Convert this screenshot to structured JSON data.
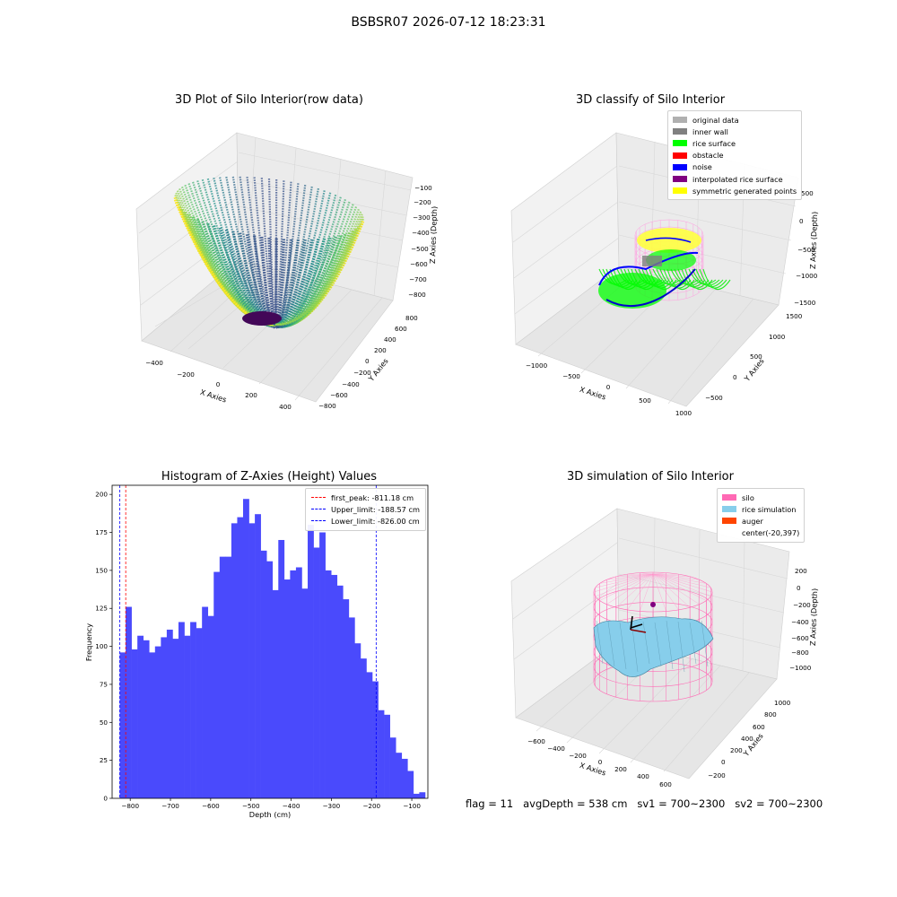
{
  "suptitle": "BSBSR07 2026-07-12 18:23:31",
  "status_line": "flag = 11   avgDepth = 538 cm   sv1 = 700~2300   sv2 = 700~2300",
  "chart_data": [
    {
      "type": "scatter3d",
      "title": "3D Plot of Silo Interior(row data)",
      "xlabel": "X Axies",
      "ylabel": "Y Axies",
      "zlabel": "Z Axies (Depth)",
      "xticks": [
        "−400",
        "−200",
        "0",
        "200",
        "400"
      ],
      "yticks": [
        "−800",
        "−600",
        "−400",
        "−200",
        "0",
        "200",
        "400",
        "600",
        "800"
      ],
      "zticks": [
        "−100",
        "−200",
        "−300",
        "−400",
        "−500",
        "−600",
        "−700",
        "−800"
      ],
      "colormap": "viridis",
      "grid": true
    },
    {
      "type": "scatter3d",
      "title": "3D classify of Silo Interior",
      "xlabel": "X Axies",
      "ylabel": "Y Axies",
      "zlabel": "Z Axies (Depth)",
      "xticks": [
        "−1000",
        "−500",
        "0",
        "500",
        "1000"
      ],
      "yticks": [
        "−500",
        "0",
        "500",
        "1000",
        "1500"
      ],
      "zticks": [
        "500",
        "0",
        "−500",
        "−1000",
        "−1500"
      ],
      "legend": [
        {
          "label": "original data",
          "color": "#b0b0b0"
        },
        {
          "label": "inner wall",
          "color": "#808080"
        },
        {
          "label": "rice surface",
          "color": "#00ff00"
        },
        {
          "label": "obstacle",
          "color": "#ff0000"
        },
        {
          "label": "noise",
          "color": "#0000ff"
        },
        {
          "label": "interpolated rice surface",
          "color": "#800080"
        },
        {
          "label": "symmetric generated points",
          "color": "#ffff00"
        }
      ],
      "legend_position": "top-right",
      "grid": true
    },
    {
      "type": "bar",
      "title": "Histogram of Z-Axies (Height) Values",
      "xlabel": "Depth (cm)",
      "ylabel": "Frequency",
      "xlim": [
        -845,
        -60
      ],
      "ylim": [
        0,
        206
      ],
      "xticks": [
        -800,
        -700,
        -600,
        -500,
        -400,
        -300,
        -200,
        -100
      ],
      "xtick_labels": [
        "−800",
        "−700",
        "−600",
        "−500",
        "−400",
        "−300",
        "−200",
        "−100"
      ],
      "yticks": [
        0,
        25,
        50,
        75,
        100,
        125,
        150,
        175,
        200
      ],
      "bin_start": -826.0,
      "bin_width": 14.6,
      "values": [
        96,
        126,
        98,
        107,
        104,
        96,
        100,
        106,
        111,
        105,
        116,
        107,
        116,
        112,
        126,
        120,
        149,
        159,
        159,
        181,
        185,
        197,
        181,
        187,
        163,
        156,
        137,
        170,
        144,
        150,
        152,
        138,
        180,
        165,
        175,
        150,
        147,
        140,
        131,
        119,
        102,
        92,
        83,
        77,
        58,
        55,
        40,
        30,
        26,
        18,
        3,
        4
      ],
      "bar_color": "#4a4afc",
      "vlines": [
        {
          "label": "first_peak: -811.18 cm",
          "x": -811.18,
          "color": "#ff0000"
        },
        {
          "label": "Upper_limit: -188.57 cm",
          "x": -188.57,
          "color": "#0000ff"
        },
        {
          "label": "Lower_limit: -826.00 cm",
          "x": -826.0,
          "color": "#0000ff"
        }
      ],
      "legend_position": "top-right"
    },
    {
      "type": "surface3d",
      "title": "3D simulation of Silo Interior",
      "xlabel": "X Axies",
      "ylabel": "Y Axies",
      "zlabel": "Z Axies (Depth)",
      "xticks": [
        "−600",
        "−400",
        "−200",
        "0",
        "200",
        "400",
        "600"
      ],
      "yticks": [
        "−200",
        "0",
        "200",
        "400",
        "600",
        "800",
        "1000"
      ],
      "zticks": [
        "200",
        "0",
        "−200",
        "−400",
        "−600",
        "−800",
        "−1000"
      ],
      "legend": [
        {
          "label": "silo",
          "color": "#ff69b4"
        },
        {
          "label": "rice simulation",
          "color": "#87ceeb"
        },
        {
          "label": "auger",
          "color": "#ff4500"
        },
        {
          "label": "center(-20,397)",
          "color": ""
        }
      ],
      "legend_position": "top-right",
      "grid": true
    }
  ]
}
